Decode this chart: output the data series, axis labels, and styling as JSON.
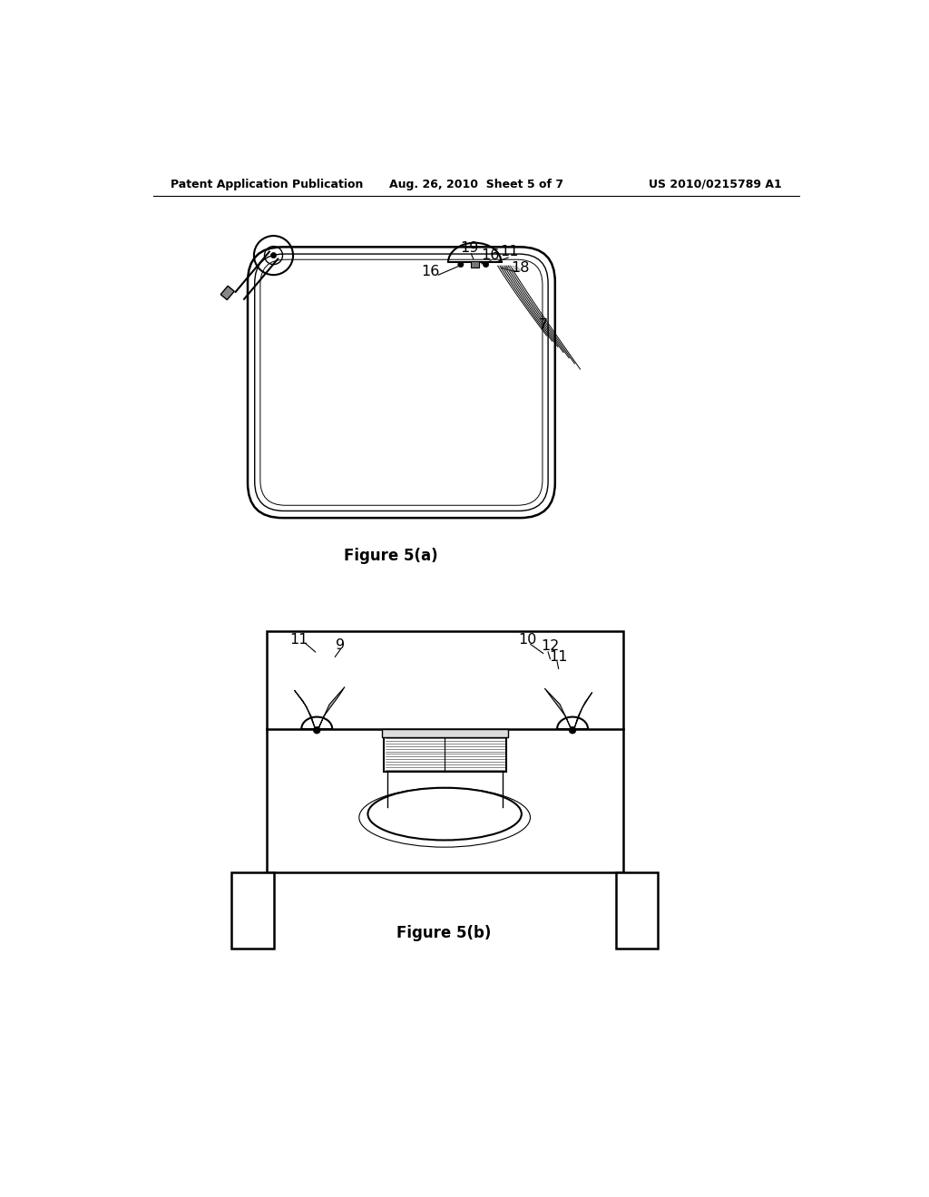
{
  "background_color": "#ffffff",
  "header_left": "Patent Application Publication",
  "header_center": "Aug. 26, 2010  Sheet 5 of 7",
  "header_right": "US 2010/0215789 A1",
  "fig5a_caption": "Figure 5(a)",
  "fig5b_caption": "Figure 5(b)",
  "line_color": "#000000",
  "text_color": "#000000"
}
